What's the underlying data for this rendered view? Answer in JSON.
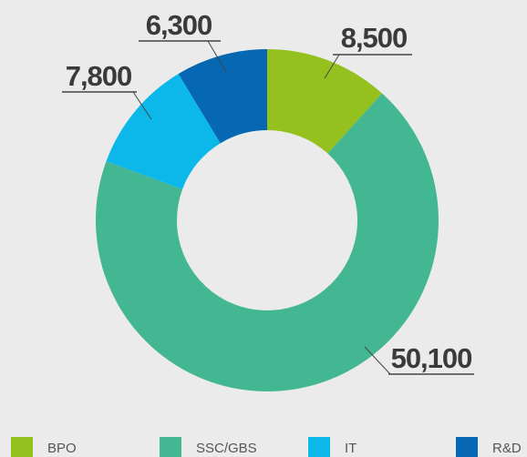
{
  "chart_data": {
    "type": "donut",
    "categories": [
      "BPO",
      "SSC/GBS",
      "IT",
      "R&D"
    ],
    "values": [
      8500,
      50100,
      7800,
      6300
    ],
    "value_labels": [
      "8,500",
      "50,100",
      "7,800",
      "6,300"
    ],
    "colors": [
      "#95c11f",
      "#43b692",
      "#0cb8ea",
      "#0668b3"
    ],
    "legend": "bottom"
  }
}
